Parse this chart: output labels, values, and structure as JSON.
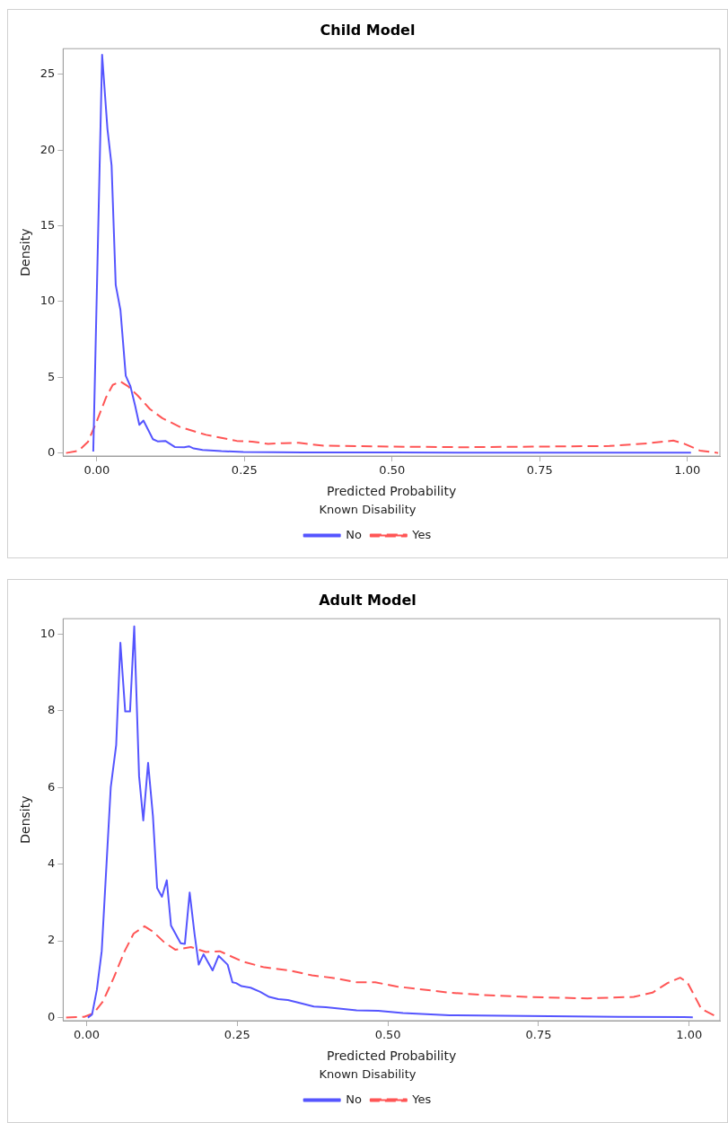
{
  "chart_data": [
    {
      "type": "line",
      "title": "Child Model",
      "xlabel": "Predicted Probability",
      "ylabel": "Density",
      "legend_title": "Known Disability",
      "legend": "bottom",
      "grid": false,
      "xlim": [
        -0.057,
        1.055
      ],
      "ylim": [
        -0.2,
        26.7
      ],
      "xticks": [
        {
          "value": 0,
          "label": "0.00"
        },
        {
          "value": 0.25,
          "label": "0.25"
        },
        {
          "value": 0.5,
          "label": "0.50"
        },
        {
          "value": 0.75,
          "label": "0.75"
        },
        {
          "value": 1,
          "label": "1.00"
        }
      ],
      "yticks": [
        0,
        5,
        10,
        15,
        20,
        25
      ],
      "series": [
        {
          "name": "No",
          "color": "#5555ff",
          "line_style": "solid",
          "x": [
            -0.006,
            0.009,
            0.018,
            0.025,
            0.032,
            0.04,
            0.049,
            0.057,
            0.065,
            0.072,
            0.079,
            0.095,
            0.103,
            0.116,
            0.132,
            0.148,
            0.156,
            0.164,
            0.179,
            0.211,
            0.248,
            0.35,
            0.5,
            0.75,
            1.006
          ],
          "values": [
            0.1,
            26.3,
            21.4,
            19.0,
            11.1,
            9.45,
            5.1,
            4.4,
            3.1,
            1.86,
            2.14,
            0.91,
            0.77,
            0.8,
            0.4,
            0.38,
            0.44,
            0.3,
            0.2,
            0.12,
            0.07,
            0.04,
            0.03,
            0.02,
            0.02
          ]
        },
        {
          "name": "Yes",
          "color": "#ff5555",
          "line_style": "dashed",
          "x": [
            -0.052,
            -0.031,
            -0.015,
            0,
            0.016,
            0.027,
            0.04,
            0.053,
            0.069,
            0.09,
            0.111,
            0.142,
            0.185,
            0.237,
            0.263,
            0.29,
            0.316,
            0.342,
            0.384,
            0.5,
            0.621,
            0.737,
            0.868,
            0.936,
            0.976,
            0.994,
            1.021,
            1.052
          ],
          "values": [
            0,
            0.14,
            0.73,
            2.1,
            3.7,
            4.5,
            4.72,
            4.4,
            3.8,
            2.9,
            2.3,
            1.7,
            1.2,
            0.8,
            0.75,
            0.6,
            0.65,
            0.67,
            0.48,
            0.42,
            0.38,
            0.42,
            0.46,
            0.65,
            0.82,
            0.62,
            0.16,
            0
          ]
        }
      ]
    },
    {
      "type": "line",
      "title": "Adult Model",
      "xlabel": "Predicted Probability",
      "ylabel": "Density",
      "legend_title": "Known Disability",
      "legend": "bottom",
      "grid": false,
      "xlim": [
        -0.039,
        1.051
      ],
      "ylim": [
        -0.08,
        10.4
      ],
      "xticks": [
        {
          "value": 0,
          "label": "0.00"
        },
        {
          "value": 0.25,
          "label": "0.25"
        },
        {
          "value": 0.5,
          "label": "0.50"
        },
        {
          "value": 0.75,
          "label": "0.75"
        },
        {
          "value": 1,
          "label": "1.00"
        }
      ],
      "yticks": [
        0,
        2,
        4,
        6,
        8,
        10
      ],
      "series": [
        {
          "name": "No",
          "color": "#5555ff",
          "line_style": "solid",
          "x": [
            0.002,
            0.009,
            0.017,
            0.025,
            0.04,
            0.049,
            0.056,
            0.064,
            0.072,
            0.079,
            0.087,
            0.094,
            0.102,
            0.11,
            0.117,
            0.125,
            0.133,
            0.14,
            0.156,
            0.163,
            0.171,
            0.179,
            0.186,
            0.194,
            0.209,
            0.219,
            0.234,
            0.242,
            0.248,
            0.257,
            0.272,
            0.288,
            0.303,
            0.318,
            0.334,
            0.349,
            0.377,
            0.397,
            0.448,
            0.484,
            0.525,
            0.602,
            0.729,
            0.882,
            1.006
          ],
          "values": [
            0,
            0.08,
            0.73,
            1.73,
            6.0,
            7.1,
            9.77,
            7.98,
            7.98,
            10.2,
            6.3,
            5.14,
            6.64,
            5.26,
            3.38,
            3.15,
            3.58,
            2.4,
            1.94,
            1.92,
            3.26,
            2.19,
            1.38,
            1.65,
            1.23,
            1.61,
            1.38,
            0.92,
            0.9,
            0.82,
            0.78,
            0.67,
            0.54,
            0.48,
            0.46,
            0.4,
            0.29,
            0.27,
            0.19,
            0.18,
            0.12,
            0.06,
            0.04,
            0.02,
            0.01
          ]
        },
        {
          "name": "Yes",
          "color": "#ff5555",
          "line_style": "dashed",
          "x": [
            -0.034,
            -0.004,
            0.012,
            0.027,
            0.045,
            0.063,
            0.078,
            0.096,
            0.111,
            0.129,
            0.147,
            0.173,
            0.198,
            0.221,
            0.259,
            0.295,
            0.336,
            0.374,
            0.407,
            0.448,
            0.479,
            0.515,
            0.602,
            0.658,
            0.729,
            0.831,
            0.908,
            0.939,
            0.964,
            0.985,
            0.997,
            1.02,
            1.046
          ],
          "values": [
            0,
            0.02,
            0.12,
            0.42,
            1.04,
            1.73,
            2.19,
            2.38,
            2.23,
            1.96,
            1.77,
            1.84,
            1.71,
            1.73,
            1.46,
            1.31,
            1.23,
            1.1,
            1.04,
            0.92,
            0.92,
            0.81,
            0.65,
            0.59,
            0.54,
            0.5,
            0.54,
            0.65,
            0.9,
            1.04,
            0.92,
            0.23,
            0.02
          ]
        }
      ]
    }
  ]
}
